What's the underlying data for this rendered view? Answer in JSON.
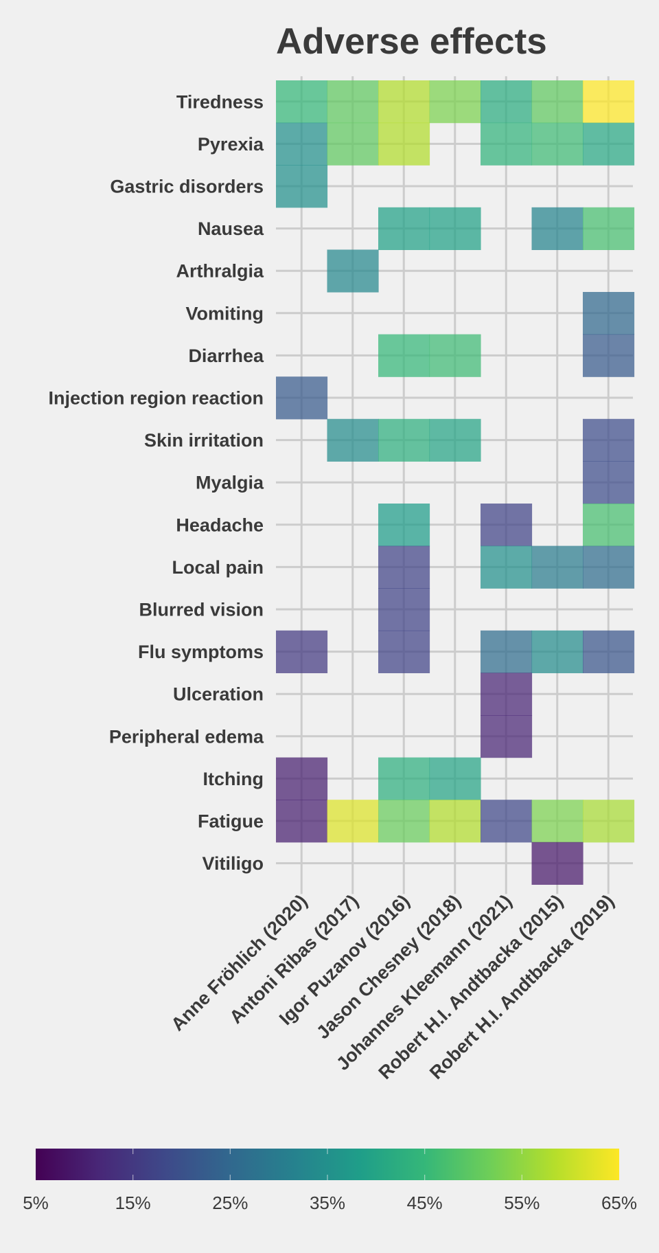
{
  "chart_data": {
    "type": "heatmap",
    "title": "Adverse effects",
    "rows": [
      "Tiredness",
      "Pyrexia",
      "Gastric disorders",
      "Nausea",
      "Arthralgia",
      "Vomiting",
      "Diarrhea",
      "Injection region reaction",
      "Skin irritation",
      "Myalgia",
      "Headache",
      "Local pain",
      "Blurred vision",
      "Flu symptoms",
      "Ulceration",
      "Peripheral edema",
      "Itching",
      "Fatigue",
      "Vitiligo"
    ],
    "columns": [
      "Anne Fröhlich (2020)",
      "Antoni Ribas (2017)",
      "Igor Puzanov (2016)",
      "Jason Chesney (2018)",
      "Johannes Kleemann (2021)",
      "Robert H.I. Andtbacka (2015)",
      "Robert H.I. Andtbacka (2019)"
    ],
    "values_percent": [
      [
        45,
        50,
        58,
        53,
        42,
        50,
        65
      ],
      [
        35,
        50,
        58,
        null,
        44,
        46,
        41
      ],
      [
        35,
        null,
        null,
        null,
        null,
        null,
        null
      ],
      [
        null,
        null,
        39,
        39,
        null,
        32,
        47
      ],
      [
        null,
        33,
        null,
        null,
        null,
        null,
        null
      ],
      [
        null,
        null,
        null,
        null,
        null,
        null,
        25
      ],
      [
        null,
        null,
        45,
        46,
        null,
        null,
        22
      ],
      [
        22,
        null,
        null,
        null,
        null,
        null,
        null
      ],
      [
        null,
        34,
        43,
        40,
        null,
        null,
        19
      ],
      [
        null,
        null,
        null,
        null,
        null,
        null,
        19
      ],
      [
        null,
        null,
        38,
        null,
        17,
        null,
        47
      ],
      [
        null,
        null,
        17,
        null,
        35,
        30,
        26
      ],
      [
        null,
        null,
        17,
        null,
        null,
        null,
        null
      ],
      [
        15,
        null,
        17,
        null,
        26,
        34,
        21
      ],
      [
        null,
        null,
        null,
        null,
        11,
        null,
        null
      ],
      [
        null,
        null,
        null,
        null,
        11,
        null,
        null
      ],
      [
        10,
        null,
        43,
        40,
        null,
        null,
        null
      ],
      [
        10,
        62,
        51,
        58,
        18,
        53,
        57
      ],
      [
        null,
        null,
        null,
        null,
        null,
        9,
        null
      ]
    ],
    "colorbar": {
      "min": 5,
      "max": 65,
      "ticks": [
        "5%",
        "15%",
        "25%",
        "35%",
        "45%",
        "55%",
        "65%"
      ]
    },
    "colormap": "viridis",
    "grid": true
  }
}
